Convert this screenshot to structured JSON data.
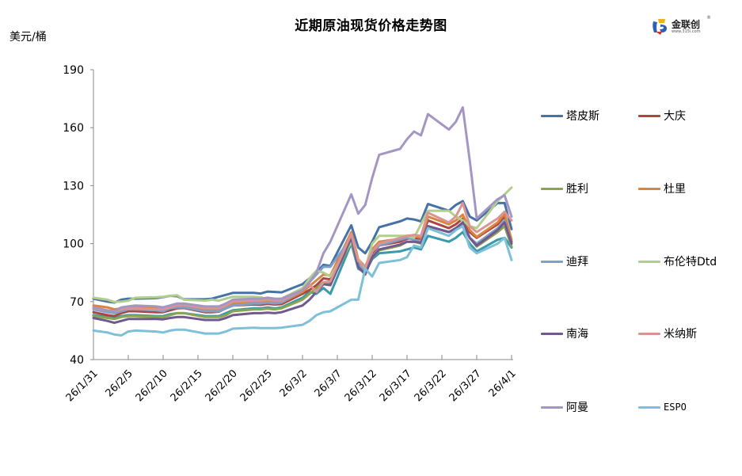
{
  "header": {
    "title": "近期原油现货价格走势图",
    "unit": "美元/桶",
    "logo_name": "金联创",
    "logo_url": "www.315i.com",
    "logo_reg": "®"
  },
  "chart_data": {
    "type": "line",
    "title": "近期原油现货价格走势图",
    "xlabel": "",
    "ylabel": "美元/桶",
    "ylim": [
      40,
      190
    ],
    "yticks": [
      40,
      70,
      100,
      130,
      160,
      190
    ],
    "grid": false,
    "legend_position": "right",
    "xtick_labels": [
      "26/1/31",
      "26/2/5",
      "26/2/10",
      "26/2/15",
      "26/2/20",
      "26/2/25",
      "26/3/2",
      "26/3/7",
      "26/3/12",
      "26/3/17",
      "26/3/22",
      "26/3/27",
      "26/4/1"
    ],
    "x": [
      "26/1/31",
      "26/2/2",
      "26/2/3",
      "26/2/4",
      "26/2/5",
      "26/2/6",
      "26/2/9",
      "26/2/10",
      "26/2/11",
      "26/2/12",
      "26/2/13",
      "26/2/16",
      "26/2/17",
      "26/2/18",
      "26/2/19",
      "26/2/20",
      "26/2/23",
      "26/2/24",
      "26/2/25",
      "26/2/26",
      "26/2/27",
      "26/3/2",
      "26/3/3",
      "26/3/4",
      "26/3/5",
      "26/3/6",
      "26/3/9",
      "26/3/10",
      "26/3/11",
      "26/3/12",
      "26/3/13",
      "26/3/16",
      "26/3/17",
      "26/3/18",
      "26/3/19",
      "26/3/20",
      "26/3/23",
      "26/3/24",
      "26/3/25",
      "26/3/26",
      "26/3/27",
      "26/3/30",
      "26/3/31",
      "26/4/1"
    ],
    "series": [
      {
        "name": "塔皮斯",
        "color": "#4572a7",
        "values": [
          71.5,
          70,
          69.5,
          71,
          71.5,
          71.5,
          71.8,
          72.3,
          73,
          72.8,
          71.2,
          71.2,
          71.5,
          72.5,
          73.5,
          74.5,
          74.5,
          74.2,
          75.2,
          75,
          74.8,
          79,
          82,
          85,
          89,
          88.5,
          109.5,
          98,
          95,
          101,
          108.5,
          111.5,
          113,
          112.5,
          111.5,
          120.5,
          117,
          120,
          122,
          114,
          112,
          121,
          121,
          107.5
        ]
      },
      {
        "name": "大庆",
        "color": "#aa4643",
        "values": [
          64.5,
          63,
          62.5,
          64,
          65,
          65,
          64.5,
          64.5,
          65.5,
          66.5,
          66.7,
          64.5,
          64.5,
          64.8,
          66.5,
          68,
          68.5,
          68.3,
          68.8,
          68.5,
          68.7,
          74,
          76,
          78.5,
          82,
          81.5,
          104,
          90,
          87,
          95,
          99,
          101,
          102.5,
          103,
          102.5,
          112,
          108,
          110,
          113,
          106,
          103,
          110,
          114,
          101
        ]
      },
      {
        "name": "胜利",
        "color": "#89a54e",
        "values": [
          62.5,
          61.5,
          61,
          62,
          62.5,
          62.5,
          62,
          62,
          63,
          64,
          64,
          62,
          62,
          62,
          63,
          65,
          66,
          66,
          66.3,
          66,
          66.5,
          71,
          74,
          77,
          80,
          79.5,
          101,
          88,
          85,
          93,
          96.5,
          99,
          101,
          101,
          100,
          109,
          106,
          107.5,
          110,
          103,
          98.5,
          106,
          109,
          98.5
        ]
      },
      {
        "name": "杜里",
        "color": "#db843d",
        "values": [
          68,
          67,
          66,
          66.5,
          67,
          67,
          66.5,
          66,
          67,
          67.5,
          68,
          66,
          66,
          66,
          67,
          69,
          70,
          69.5,
          70,
          69.5,
          69.5,
          75,
          78,
          81,
          84,
          83.5,
          106,
          92,
          88,
          97,
          101,
          102.5,
          104,
          104,
          103,
          114,
          110,
          112,
          115,
          107,
          103.5,
          111,
          115.5,
          102
        ]
      },
      {
        "name": "迪拜",
        "color": "#80a0c8",
        "values": [
          66,
          64.5,
          64,
          65,
          66,
          66,
          65.5,
          65,
          66.5,
          67,
          67,
          65,
          65,
          65,
          66.5,
          68,
          69,
          69,
          69.5,
          69,
          69.5,
          76,
          80,
          84,
          88,
          88,
          103,
          90,
          85,
          96,
          99,
          102,
          103,
          102,
          101,
          109,
          106,
          108,
          110,
          103,
          100,
          108,
          112,
          100
        ]
      },
      {
        "name": "布伦特Dtd",
        "color": "#b2ce8c",
        "values": [
          72,
          71,
          69.8,
          70,
          70.5,
          72,
          72.3,
          72.5,
          73,
          73.3,
          71,
          70.5,
          71,
          70.5,
          71.5,
          72.5,
          72.5,
          72.3,
          71,
          71,
          71.5,
          77,
          82,
          86,
          85,
          83,
          101,
          92,
          87,
          100,
          104,
          104,
          104,
          103,
          110,
          117,
          117,
          114,
          112,
          109,
          108,
          122,
          125.5,
          129
        ]
      },
      {
        "name": "南海",
        "color": "#71588f",
        "values": [
          61.5,
          60,
          59,
          60,
          61,
          61,
          61,
          60.8,
          61.5,
          62,
          62,
          60.5,
          60.5,
          60.5,
          61.5,
          63,
          64,
          64,
          64.3,
          64,
          64.5,
          68,
          71,
          75,
          79,
          78.5,
          103,
          88,
          84,
          93,
          97,
          99.5,
          101,
          101,
          100.5,
          109,
          106,
          108,
          111,
          103,
          99,
          107,
          111,
          100
        ]
      },
      {
        "name": "米纳斯",
        "color": "#d99594",
        "values": [
          66.5,
          65.5,
          65,
          66,
          66.5,
          66.5,
          66,
          66,
          67,
          68,
          68.2,
          66.5,
          66.5,
          66.5,
          68,
          70,
          70.5,
          70.5,
          71,
          70.5,
          70.5,
          76,
          79,
          75,
          80,
          80.5,
          105,
          91,
          88,
          96,
          100,
          103,
          104,
          104.5,
          104,
          116,
          111,
          114,
          121,
          109,
          106,
          113,
          116.5,
          112
        ]
      },
      {
        "name": "阿曼",
        "color": "#a496c3",
        "values": [
          67,
          65.5,
          65,
          67,
          67.5,
          68,
          67.5,
          67,
          68,
          69,
          69,
          67.5,
          67.5,
          67.5,
          69,
          71,
          71.5,
          71.5,
          72,
          71.5,
          71.5,
          76,
          80,
          85,
          95,
          101,
          125.5,
          115.5,
          120,
          134,
          146,
          149,
          154,
          158,
          156,
          167,
          159,
          163,
          170.5,
          143,
          113,
          123,
          125,
          114
        ]
      },
      {
        "name": "ESPO",
        "color": "#7ec0d8",
        "values": [
          55,
          54,
          53,
          52.5,
          54.5,
          55,
          54.5,
          54,
          55,
          55.5,
          55.5,
          53.5,
          53.5,
          53.5,
          54.5,
          56,
          56.5,
          56.3,
          56.3,
          56.3,
          56.5,
          58,
          60,
          63,
          64.5,
          65,
          71,
          71,
          87,
          83,
          90,
          91.5,
          93,
          99,
          98,
          108,
          104,
          107,
          109,
          98,
          95,
          100,
          103,
          91.5
        ]
      },
      {
        "name": "",
        "color": "#3a9aab",
        "values": [
          63,
          62,
          61.5,
          62.5,
          63,
          63,
          62.5,
          62.5,
          63.5,
          64,
          64,
          62.5,
          62.5,
          62.5,
          64,
          65.5,
          66.5,
          66.5,
          67,
          66.5,
          67,
          72,
          75,
          74,
          77,
          74,
          100,
          87,
          85,
          92,
          95,
          96,
          97,
          98,
          97,
          104,
          101,
          103,
          106,
          100,
          96,
          102,
          103,
          98
        ]
      }
    ]
  },
  "legend": {
    "items": [
      {
        "label": "塔皮斯",
        "color": "#4572a7"
      },
      {
        "label": "大庆",
        "color": "#aa4643"
      },
      {
        "label": "胜利",
        "color": "#89a54e"
      },
      {
        "label": "杜里",
        "color": "#db843d"
      },
      {
        "label": "迪拜",
        "color": "#80a0c8"
      },
      {
        "label": "布伦特Dtd",
        "color": "#b2ce8c"
      },
      {
        "label": "南海",
        "color": "#71588f"
      },
      {
        "label": "米纳斯",
        "color": "#d99594"
      },
      {
        "label": "阿曼",
        "color": "#a496c3"
      },
      {
        "label": "ESPO",
        "color": "#7ec0d8"
      }
    ]
  }
}
